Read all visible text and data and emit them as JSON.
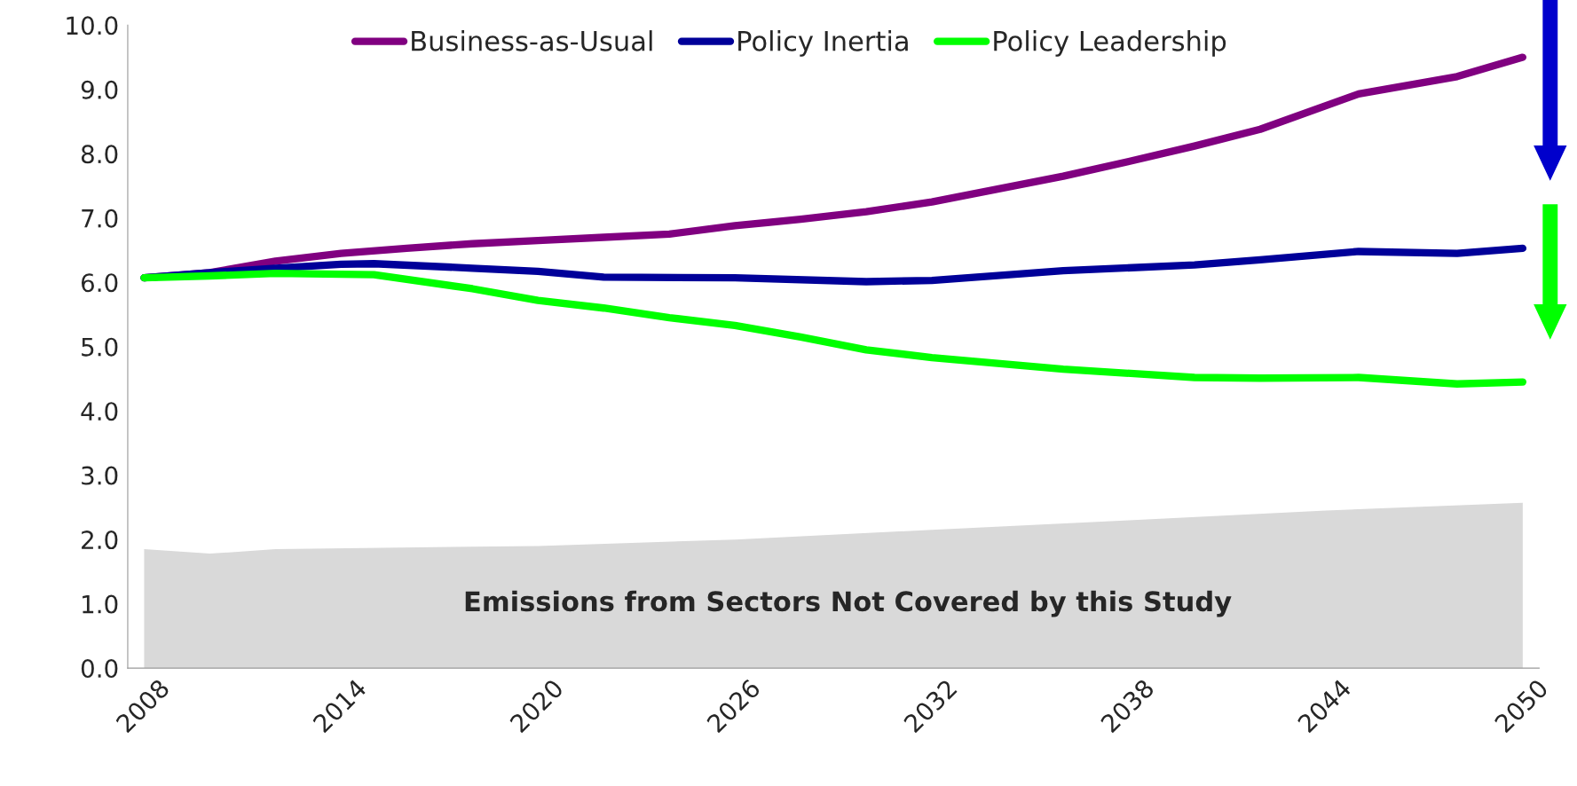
{
  "chart_data": {
    "type": "line",
    "series": [
      {
        "type": "area",
        "color": "#d9d9d9",
        "x": [
          2008,
          2010,
          2012,
          2020,
          2026,
          2032,
          2038,
          2044,
          2050
        ],
        "values": [
          1.85,
          1.78,
          1.85,
          1.9,
          2.0,
          2.15,
          2.3,
          2.45,
          2.57
        ]
      },
      {
        "name": "Business-as-Usual",
        "color": "#800080",
        "x": [
          2008,
          2010,
          2012,
          2014,
          2016,
          2018,
          2020,
          2022,
          2024,
          2026,
          2028,
          2030,
          2032,
          2034,
          2036,
          2038,
          2040,
          2042,
          2045,
          2048,
          2050
        ],
        "values": [
          6.07,
          6.15,
          6.33,
          6.45,
          6.53,
          6.6,
          6.65,
          6.7,
          6.75,
          6.88,
          6.98,
          7.1,
          7.25,
          7.45,
          7.65,
          7.88,
          8.12,
          8.38,
          8.93,
          9.2,
          9.5
        ]
      },
      {
        "name": "Policy Inertia",
        "color": "#000099",
        "x": [
          2008,
          2010,
          2012,
          2014,
          2015,
          2018,
          2020,
          2022,
          2026,
          2030,
          2032,
          2036,
          2040,
          2042,
          2045,
          2048,
          2050
        ],
        "values": [
          6.07,
          6.15,
          6.22,
          6.28,
          6.29,
          6.22,
          6.17,
          6.08,
          6.07,
          6.01,
          6.03,
          6.18,
          6.27,
          6.35,
          6.48,
          6.45,
          6.53
        ]
      },
      {
        "name": "Policy Leadership",
        "color": "#00ff00",
        "x": [
          2008,
          2010,
          2012,
          2015,
          2018,
          2020,
          2022,
          2024,
          2026,
          2028,
          2030,
          2032,
          2036,
          2040,
          2042,
          2045,
          2048,
          2050
        ],
        "values": [
          6.07,
          6.1,
          6.14,
          6.12,
          5.9,
          5.72,
          5.6,
          5.45,
          5.33,
          5.15,
          4.95,
          4.83,
          4.65,
          4.52,
          4.51,
          4.52,
          4.42,
          4.45
        ]
      }
    ],
    "xlim": [
      2007.5,
      2050.5
    ],
    "xticks": [
      2008,
      2014,
      2020,
      2026,
      2032,
      2038,
      2044,
      2050
    ],
    "ylim": [
      0,
      10
    ],
    "yticks": [
      {
        "value": 0,
        "label": "0.0"
      },
      {
        "value": 1,
        "label": "1.0"
      },
      {
        "value": 2,
        "label": "2.0"
      },
      {
        "value": 3,
        "label": "3.0"
      },
      {
        "value": 4,
        "label": "4.0"
      },
      {
        "value": 5,
        "label": "5.0"
      },
      {
        "value": 6,
        "label": "6.0"
      },
      {
        "value": 7,
        "label": "7.0"
      },
      {
        "value": 8,
        "label": "8.0"
      },
      {
        "value": 9,
        "label": "9.0"
      },
      {
        "value": 10,
        "label": "10.0"
      }
    ],
    "annotations": [
      "Emissions from Sectors Not Covered by this Study"
    ],
    "legend": "top",
    "grid": false,
    "marker": "none",
    "line_style": "solid"
  }
}
